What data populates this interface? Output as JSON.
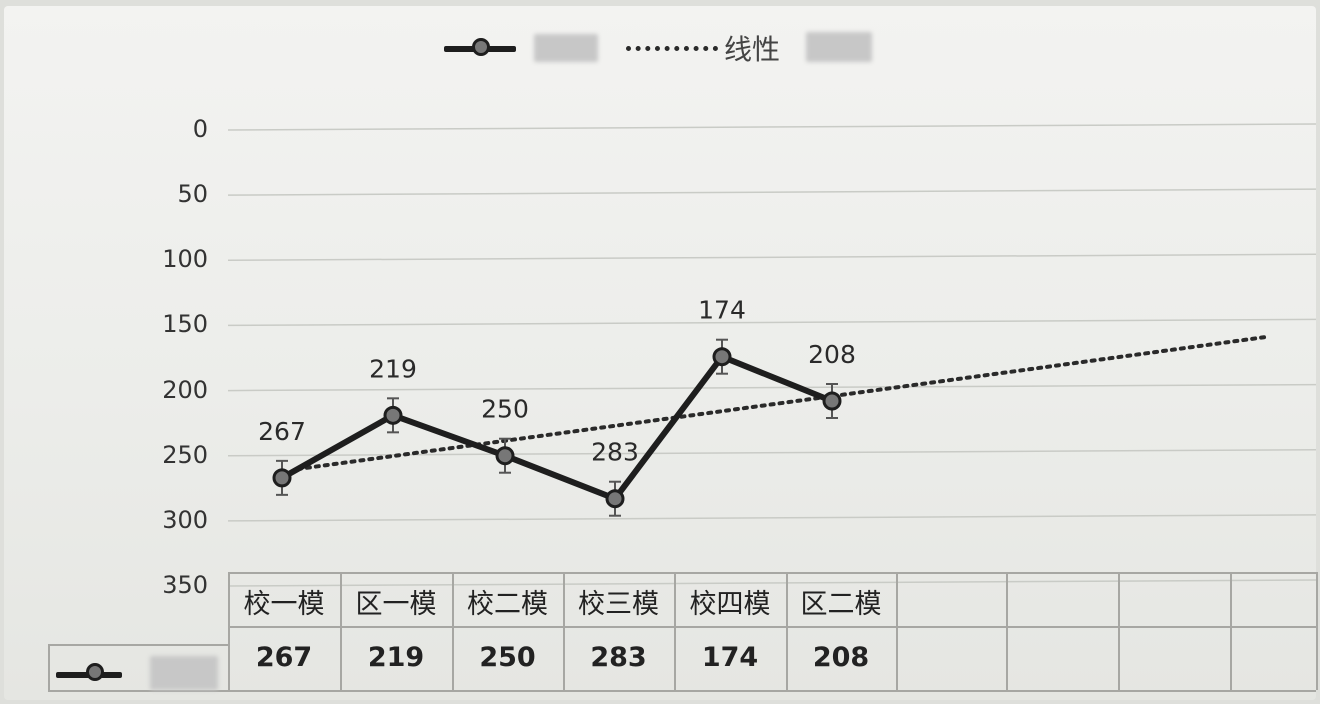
{
  "chart_data": {
    "type": "line",
    "categories": [
      "校一模",
      "区一模",
      "校二模",
      "校三模",
      "校四模",
      "区二模"
    ],
    "series": [
      {
        "values": [
          267,
          219,
          250,
          283,
          174,
          208
        ]
      }
    ],
    "trendline": {
      "type": "linear",
      "label": "线性"
    },
    "data_labels": [
      "267",
      "219",
      "250",
      "283",
      "174",
      "208"
    ],
    "yticks": [
      "0",
      "50",
      "100",
      "150",
      "200",
      "250",
      "300",
      "350"
    ],
    "ylim": [
      0,
      350
    ],
    "y_inverted": true,
    "error_bars": true,
    "grid": true,
    "legend": "top",
    "data_table": true
  },
  "colors": {
    "series_line": "#1e1e1e",
    "marker_fill": "#777777",
    "trend_line": "#2a2a2a",
    "gridline": "#c9cbc6"
  }
}
